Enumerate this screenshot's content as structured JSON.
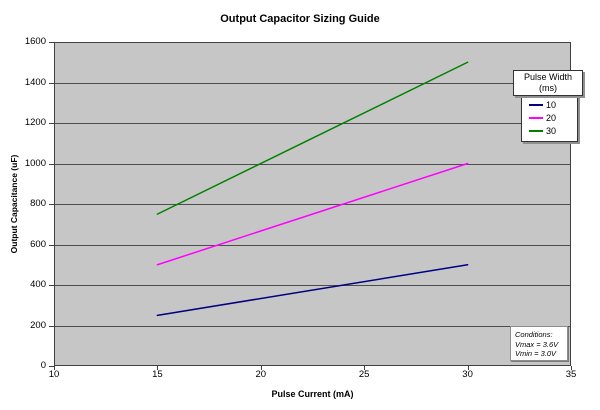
{
  "chart_title": "Output Capacitor Sizing Guide",
  "chart_data": {
    "type": "line",
    "title": "Output Capacitor Sizing Guide",
    "xlabel": "Pulse Current (mA)",
    "ylabel": "Output Capacitance (uF)",
    "xlim": [
      10,
      35
    ],
    "ylim": [
      0,
      1600
    ],
    "x_ticks": [
      10,
      15,
      20,
      25,
      30,
      35
    ],
    "y_ticks": [
      0,
      200,
      400,
      600,
      800,
      1000,
      1200,
      1400,
      1600
    ],
    "grid": "horizontal gridlines every 200",
    "legend_position": "top-right",
    "plot_bg_color": "#c6c6c6",
    "grid_color": "#4d4d4d",
    "axis_color": "#404040",
    "x": [
      15,
      30
    ],
    "series": [
      {
        "name": "10",
        "color": "#000080",
        "values": [
          250,
          500
        ]
      },
      {
        "name": "20",
        "color": "#ff00ff",
        "values": [
          500,
          1000
        ]
      },
      {
        "name": "30",
        "color": "#008000",
        "values": [
          750,
          1500
        ]
      }
    ]
  },
  "legend": {
    "title_line1": "Pulse Width",
    "title_line2": "(ms)",
    "entries": [
      {
        "label": "10",
        "color": "#000080"
      },
      {
        "label": "20",
        "color": "#ff00ff"
      },
      {
        "label": "30",
        "color": "#008000"
      }
    ]
  },
  "conditions": {
    "line1": "Conditions:",
    "line2": "Vmax = 3.6V",
    "line3": "Vmin = 3.0V"
  }
}
